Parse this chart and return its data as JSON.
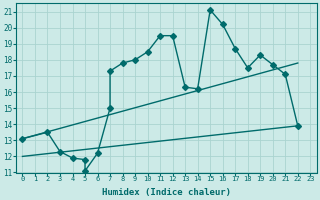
{
  "xlabel": "Humidex (Indice chaleur)",
  "xlim": [
    -0.5,
    23.5
  ],
  "ylim": [
    11,
    21.5
  ],
  "xticks": [
    0,
    1,
    2,
    3,
    4,
    5,
    6,
    7,
    8,
    9,
    10,
    11,
    12,
    13,
    14,
    15,
    16,
    17,
    18,
    19,
    20,
    21,
    22,
    23
  ],
  "yticks": [
    11,
    12,
    13,
    14,
    15,
    16,
    17,
    18,
    19,
    20,
    21
  ],
  "bg_color": "#cceae7",
  "grid_color": "#aad4d0",
  "line_color": "#006b6b",
  "line1_x": [
    0,
    2,
    3,
    4,
    5,
    5,
    6,
    7,
    7,
    8,
    9,
    10,
    11,
    12,
    13,
    14,
    15,
    16,
    17,
    18,
    19,
    20,
    21,
    22
  ],
  "line1_y": [
    13.1,
    13.5,
    12.3,
    11.9,
    11.8,
    11.1,
    12.2,
    15.0,
    17.3,
    17.8,
    18.0,
    18.5,
    19.5,
    19.5,
    16.3,
    16.2,
    21.1,
    20.2,
    18.7,
    17.5,
    18.3,
    17.7,
    17.1,
    13.9
  ],
  "line2_x": [
    0,
    22
  ],
  "line2_y": [
    13.1,
    17.8
  ],
  "line3_x": [
    0,
    22
  ],
  "line3_y": [
    12.0,
    13.9
  ],
  "marker_size": 3.0,
  "marker": "D",
  "linewidth": 1.0
}
